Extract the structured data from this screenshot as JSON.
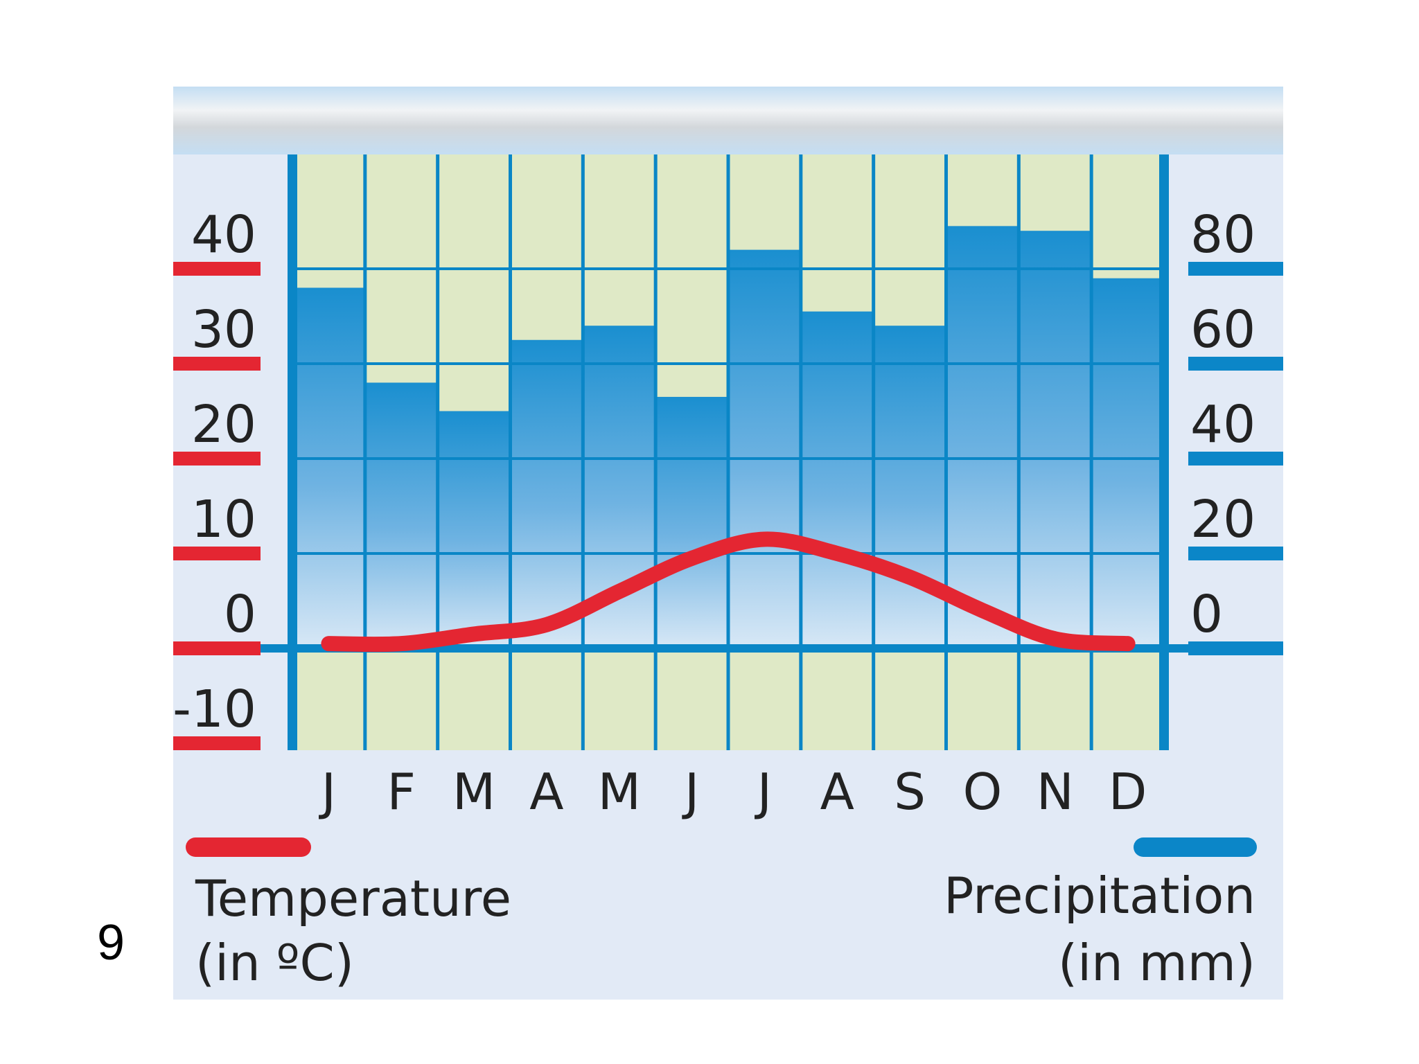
{
  "page": {
    "number": "9"
  },
  "colors": {
    "panel": "#e2eaf6",
    "band": "#c6dff2",
    "cell": "#dfe9c6",
    "grid": "#0a86c6",
    "temperature": "#e42632",
    "precipitation": "#0b86c8"
  },
  "chart_data": {
    "type": "bar",
    "categories": [
      "J",
      "F",
      "M",
      "A",
      "M",
      "J",
      "J",
      "A",
      "S",
      "O",
      "N",
      "D"
    ],
    "series": [
      {
        "name": "Precipitation",
        "axis": "right",
        "type": "bar",
        "values": [
          76,
          56,
          50,
          65,
          68,
          53,
          84,
          71,
          68,
          89,
          88,
          78
        ]
      },
      {
        "name": "Temperature",
        "axis": "left",
        "type": "line",
        "values": [
          0.5,
          0.5,
          1.5,
          2.5,
          6,
          9.5,
          11.5,
          10,
          7.5,
          4,
          1,
          0.5
        ]
      }
    ],
    "y_left": {
      "ylim": [
        -10,
        40
      ],
      "ticks": [
        "40",
        "30",
        "20",
        "10",
        "0",
        "-10"
      ]
    },
    "y_right": {
      "ylim": [
        0,
        80
      ],
      "ticks": [
        "80",
        "60",
        "40",
        "20",
        "0"
      ]
    },
    "legend": {
      "temperature": {
        "line1": "Temperature",
        "line2": "(in ºC)"
      },
      "precipitation": {
        "line1": "Precipitation",
        "line2": "(in mm)"
      }
    }
  }
}
